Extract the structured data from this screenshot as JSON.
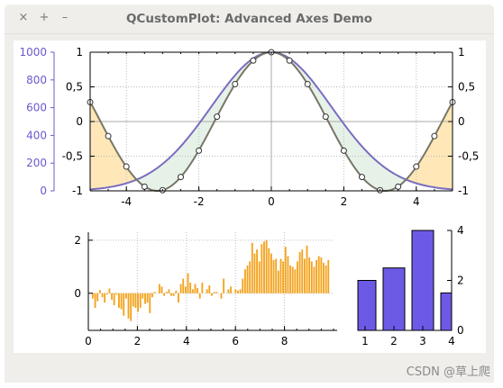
{
  "window": {
    "title": "QCustomPlot: Advanced Axes Demo",
    "buttons": {
      "close": "×",
      "maximize": "+",
      "minimize": "–"
    }
  },
  "watermark": "CSDN @草上爬",
  "colors": {
    "left_axis": "#6a5acd",
    "curve_blue": "#7a6dbf",
    "curve_gray": "#777766",
    "fill_orange": "#ffe7b8",
    "fill_green": "#e6f2e8",
    "bars_orange": "#f3a31d",
    "bars_purple": "#6c5ae6"
  },
  "chart_data": [
    {
      "type": "line",
      "title": "",
      "x_range": [
        -5,
        5
      ],
      "x_ticks": [
        "-4",
        "-2",
        "0",
        "2",
        "4"
      ],
      "right_ticks": [
        "1",
        "0,5",
        "0",
        "-0,5",
        "-1"
      ],
      "top_ticks": [
        "1",
        "0,5",
        "0",
        "-0,5",
        "-1"
      ],
      "left_axis": {
        "range": [
          0,
          1000
        ],
        "ticks": [
          "1000",
          "800",
          "600",
          "400",
          "200",
          "0"
        ]
      },
      "y_range": [
        -1,
        1
      ],
      "series": [
        {
          "kind": "gaussian-cos",
          "values": "smooth"
        },
        {
          "kind": "cos",
          "points_x": [
            -5,
            -4.5,
            -4,
            -3.5,
            -3,
            -2.5,
            -2,
            -1.5,
            -1,
            -0.5,
            0,
            0.5,
            1,
            1.5,
            2,
            2.5,
            3,
            3.5,
            4,
            4.5,
            5
          ],
          "points_y": [
            0.28,
            -0.21,
            -0.65,
            -0.94,
            -0.99,
            -0.8,
            -0.42,
            0.07,
            0.54,
            0.88,
            1.0,
            0.88,
            0.54,
            0.07,
            -0.42,
            -0.8,
            -0.99,
            -0.94,
            -0.65,
            -0.21,
            0.28
          ]
        }
      ],
      "grid": true
    },
    {
      "type": "bar",
      "x_range": [
        0,
        10
      ],
      "x_ticks": [
        "0",
        "2",
        "4",
        "6",
        "8"
      ],
      "y_ticks": [
        "2",
        "0"
      ],
      "y_range": [
        -1.4,
        2.3
      ],
      "values": [
        -0.2,
        -0.55,
        -0.3,
        0.12,
        -0.15,
        -0.35,
        -0.05,
        0.18,
        -0.25,
        -0.45,
        -0.05,
        -0.55,
        -0.6,
        -0.85,
        -0.2,
        -0.95,
        -1.05,
        -0.5,
        -0.55,
        -0.7,
        -0.55,
        -0.2,
        -0.4,
        -0.35,
        -0.75,
        -0.15,
        0.05,
        0.0,
        0.35,
        0.25,
        -0.1,
        0.05,
        0.15,
        -0.1,
        -0.1,
        0.1,
        -0.35,
        0.35,
        0.55,
        0.25,
        0.75,
        0.4,
        0.15,
        0.35,
        0.2,
        -0.2,
        0.4,
        0.0,
        0.15,
        0.3,
        -0.1,
        0.05,
        0.05,
        0.0,
        -0.2,
        0.55,
        0.0,
        0.15,
        0.25,
        0.0,
        0.15,
        0.1,
        0.15,
        0.55,
        0.9,
        1.05,
        1.2,
        1.9,
        1.5,
        1.65,
        1.2,
        1.85,
        1.95,
        2.0,
        1.7,
        1.5,
        1.25,
        1.3,
        0.85,
        1.3,
        1.2,
        1.75,
        1.4,
        1.05,
        1.0,
        0.9,
        1.2,
        1.55,
        1.65,
        1.3,
        1.8,
        1.35,
        1.2,
        1.0,
        1.25,
        1.4,
        1.35,
        1.15,
        1.05,
        1.25
      ],
      "grid": true
    },
    {
      "type": "bar",
      "categories": [
        "1",
        "2",
        "3",
        "4"
      ],
      "values": [
        2,
        2.5,
        4,
        1.5
      ],
      "x_ticks": [
        "1",
        "2",
        "3",
        "4"
      ],
      "y_ticks": [
        "4",
        "2",
        "0"
      ],
      "y_range": [
        0,
        4
      ],
      "color": "#6c5ae6"
    }
  ]
}
